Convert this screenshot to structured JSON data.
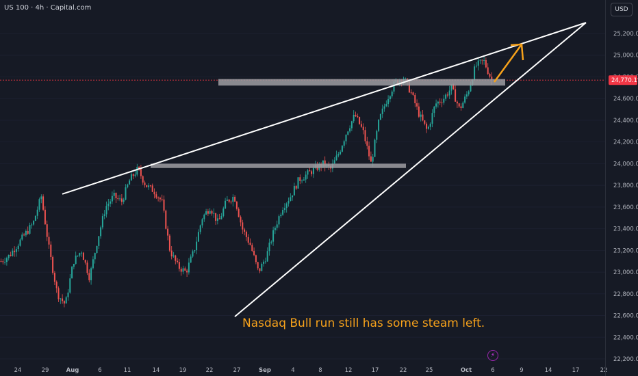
{
  "header": {
    "symbol": "US 100 · 4h · Capital.com",
    "currency": "USD"
  },
  "bolt_icon": "lightning-icon",
  "colors": {
    "bg": "#161a25",
    "up": "#26a69a",
    "down": "#ef5350",
    "text": "#b2b5be",
    "trend": "#ffffff",
    "zone": "#9e9ea2",
    "arrow": "#f7a21b",
    "price_tag": "#f23645",
    "annotation": "#f7a21b"
  },
  "chart_data": {
    "type": "candlestick",
    "title": "US 100 · 4h · Capital.com",
    "ylim": [
      22200,
      25300
    ],
    "yticks": [
      22200,
      22400,
      22600,
      22800,
      23000,
      23200,
      23400,
      23600,
      23800,
      24000,
      24200,
      24400,
      24600,
      24800,
      25000,
      25200
    ],
    "ytick_labels": [
      "22,200.0",
      "22,400.0",
      "22,600.0",
      "22,800.0",
      "23,000.0",
      "23,200.0",
      "23,400.0",
      "23,600.0",
      "23,800.0",
      "24,000.0",
      "24,200.0",
      "24,400.0",
      "24,600.0",
      "24,800.0",
      "25,000.0",
      "25,200.0"
    ],
    "xticks": [
      "24",
      "29",
      "Aug",
      "6",
      "11",
      "14",
      "19",
      "22",
      "27",
      "Sep",
      "4",
      "8",
      "12",
      "17",
      "22",
      "25",
      "Oct",
      "6",
      "9",
      "14",
      "17",
      "22"
    ],
    "xtick_bold": [
      false,
      false,
      true,
      false,
      false,
      false,
      false,
      false,
      false,
      true,
      false,
      false,
      false,
      false,
      false,
      false,
      true,
      false,
      false,
      false,
      false,
      false
    ],
    "last_price": 24770.1,
    "last_price_label": "24,770.1",
    "path": [
      23100,
      23150,
      23250,
      23350,
      23450,
      23700,
      23200,
      22800,
      22700,
      23100,
      23200,
      22950,
      23300,
      23600,
      23700,
      23650,
      23850,
      23950,
      23800,
      23750,
      23650,
      23200,
      23050,
      23000,
      23200,
      23500,
      23600,
      23450,
      23650,
      23700,
      23400,
      23250,
      23000,
      23150,
      23400,
      23600,
      23700,
      23850,
      23900,
      23950,
      24000,
      23950,
      24100,
      24300,
      24450,
      24300,
      24000,
      24400,
      24600,
      24750,
      24800,
      24650,
      24450,
      24300,
      24550,
      24600,
      24700,
      24500,
      24650,
      24900,
      24950,
      24770
    ],
    "trendlines": [
      {
        "from": [
          "29",
          23720
        ],
        "to": [
          "21",
          25300
        ]
      },
      {
        "from": [
          "1",
          22590
        ],
        "to": [
          "21",
          25300
        ]
      }
    ],
    "zones": [
      {
        "from": "14",
        "to": "Sep 20",
        "y": [
          23960,
          24000
        ]
      },
      {
        "from": "22",
        "to": "Oct 9",
        "y": [
          24720,
          24780
        ]
      }
    ],
    "annotation": "Nasdaq Bull run still has some steam left."
  }
}
